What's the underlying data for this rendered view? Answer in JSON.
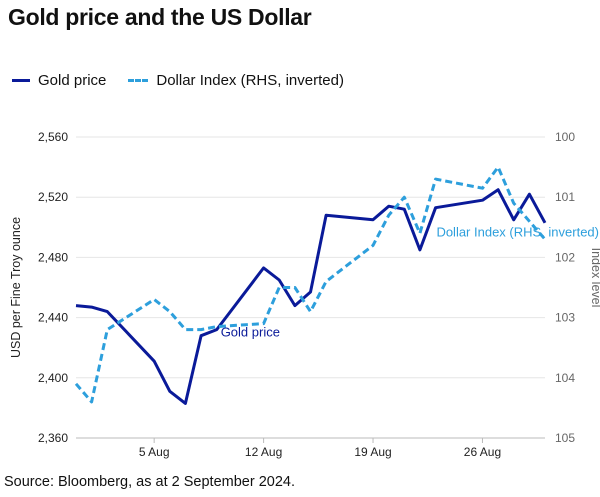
{
  "title": "Gold price and the US Dollar",
  "source": "Source: Bloomberg, as at 2 September 2024.",
  "legend": {
    "items": [
      {
        "label": "Gold price",
        "style": "solid",
        "color": "#0a1a99"
      },
      {
        "label": "Dollar Index (RHS, inverted)",
        "style": "dashed",
        "color": "#2d9fdc"
      }
    ]
  },
  "chart_data": {
    "type": "line",
    "ylabel": "USD per Fine Troy ounce",
    "y2label": "Index level",
    "ylim": [
      2360,
      2560
    ],
    "yticks": [
      "2,360",
      "2,400",
      "2,440",
      "2,480",
      "2,520",
      "2,560"
    ],
    "y2lim": [
      100,
      105
    ],
    "y2_inverted": true,
    "y2ticks": [
      "100",
      "101",
      "102",
      "103",
      "104",
      "105"
    ],
    "xlim": [
      0,
      30
    ],
    "xticks": [
      {
        "x": 5,
        "label": "5 Aug"
      },
      {
        "x": 12,
        "label": "12 Aug"
      },
      {
        "x": 19,
        "label": "19 Aug"
      },
      {
        "x": 26,
        "label": "26 Aug"
      }
    ],
    "grid": true,
    "series": [
      {
        "name": "Gold price",
        "axis": "left",
        "color": "#0a1a99",
        "dash": false,
        "points": [
          [
            0,
            2448
          ],
          [
            1,
            2447
          ],
          [
            2,
            2444
          ],
          [
            5,
            2411
          ],
          [
            6,
            2391
          ],
          [
            7,
            2383
          ],
          [
            8,
            2428
          ],
          [
            9,
            2432
          ],
          [
            12,
            2473
          ],
          [
            13,
            2465
          ],
          [
            14,
            2448
          ],
          [
            15,
            2457
          ],
          [
            16,
            2508
          ],
          [
            19,
            2505
          ],
          [
            20,
            2514
          ],
          [
            21,
            2512
          ],
          [
            22,
            2485
          ],
          [
            23,
            2513
          ],
          [
            26,
            2518
          ],
          [
            27,
            2525
          ],
          [
            28,
            2505
          ],
          [
            29,
            2522
          ],
          [
            30,
            2503
          ]
        ]
      },
      {
        "name": "Dollar Index (RHS, inverted)",
        "axis": "right",
        "color": "#2d9fdc",
        "dash": true,
        "points": [
          [
            0,
            104.1
          ],
          [
            1,
            104.4
          ],
          [
            2,
            103.2
          ],
          [
            5,
            102.7
          ],
          [
            6,
            102.9
          ],
          [
            7,
            103.2
          ],
          [
            8,
            103.2
          ],
          [
            9,
            103.15
          ],
          [
            12,
            103.1
          ],
          [
            13,
            102.5
          ],
          [
            14,
            102.5
          ],
          [
            15,
            102.9
          ],
          [
            16,
            102.4
          ],
          [
            19,
            101.8
          ],
          [
            20,
            101.3
          ],
          [
            21,
            101.0
          ],
          [
            22,
            101.6
          ],
          [
            23,
            100.7
          ],
          [
            26,
            100.85
          ],
          [
            27,
            100.5
          ],
          [
            28,
            101.1
          ],
          [
            29,
            101.4
          ],
          [
            30,
            101.7
          ]
        ]
      }
    ],
    "annotations": [
      {
        "text": "Gold price",
        "series": "Gold price"
      },
      {
        "text": "Dollar Index (RHS, inverted)",
        "series": "Dollar Index (RHS, inverted)"
      }
    ]
  }
}
